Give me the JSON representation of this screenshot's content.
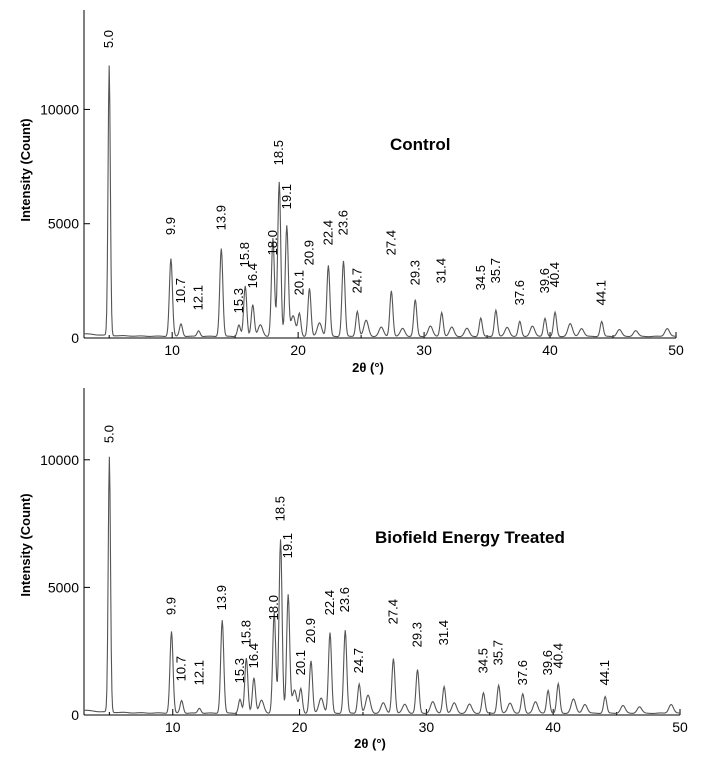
{
  "chart_data": [
    {
      "type": "line",
      "title": "Control",
      "xlabel": "2θ (°)",
      "ylabel": "Intensity (Count)",
      "xlim": [
        3,
        50
      ],
      "ylim": [
        0,
        14000
      ],
      "xticks": [
        "10",
        "20",
        "30",
        "40",
        "50"
      ],
      "yticks": [
        "0",
        "5000",
        "10000"
      ],
      "grid": false,
      "color": "#555555",
      "peaks": [
        {
          "label": "5.0",
          "x": 5.0,
          "y": 11800
        },
        {
          "label": "9.9",
          "x": 9.9,
          "y": 3400
        },
        {
          "label": "10.7",
          "x": 10.7,
          "y": 550
        },
        {
          "label": "12.1",
          "x": 12.1,
          "y": 250
        },
        {
          "label": "13.9",
          "x": 13.9,
          "y": 3850
        },
        {
          "label": "15.3",
          "x": 15.3,
          "y": 500
        },
        {
          "label": "15.8",
          "x": 15.8,
          "y": 2200
        },
        {
          "label": "16.4",
          "x": 16.4,
          "y": 1400
        },
        {
          "label": "18.0",
          "x": 18.0,
          "y": 4300
        },
        {
          "label": "18.5",
          "x": 18.5,
          "y": 6750
        },
        {
          "label": "19.1",
          "x": 19.1,
          "y": 4850
        },
        {
          "label": "20.1",
          "x": 20.1,
          "y": 1000
        },
        {
          "label": "20.9",
          "x": 20.9,
          "y": 2100
        },
        {
          "label": "22.4",
          "x": 22.4,
          "y": 3100
        },
        {
          "label": "23.6",
          "x": 23.6,
          "y": 3300
        },
        {
          "label": "24.7",
          "x": 24.7,
          "y": 1100
        },
        {
          "label": "27.4",
          "x": 27.4,
          "y": 2000
        },
        {
          "label": "29.3",
          "x": 29.3,
          "y": 1600
        },
        {
          "label": "31.4",
          "x": 31.4,
          "y": 1050
        },
        {
          "label": "34.5",
          "x": 34.5,
          "y": 800
        },
        {
          "label": "35.7",
          "x": 35.7,
          "y": 1150
        },
        {
          "label": "37.6",
          "x": 37.6,
          "y": 650
        },
        {
          "label": "39.6",
          "x": 39.6,
          "y": 800
        },
        {
          "label": "40.4",
          "x": 40.4,
          "y": 1050
        },
        {
          "label": "44.1",
          "x": 44.1,
          "y": 650
        }
      ]
    },
    {
      "type": "line",
      "title": "Biofield Energy Treated",
      "xlabel": "2θ (°)",
      "ylabel": "Intensity (Count)",
      "xlim": [
        3,
        50
      ],
      "ylim": [
        0,
        12500
      ],
      "xticks": [
        "10",
        "20",
        "30",
        "40",
        "50"
      ],
      "yticks": [
        "0",
        "5000",
        "10000"
      ],
      "grid": false,
      "color": "#555555",
      "peaks": [
        {
          "label": "5.0",
          "x": 5.0,
          "y": 10000
        },
        {
          "label": "9.9",
          "x": 9.9,
          "y": 3200
        },
        {
          "label": "10.7",
          "x": 10.7,
          "y": 500
        },
        {
          "label": "12.1",
          "x": 12.1,
          "y": 200
        },
        {
          "label": "13.9",
          "x": 13.9,
          "y": 3650
        },
        {
          "label": "15.3",
          "x": 15.3,
          "y": 550
        },
        {
          "label": "15.8",
          "x": 15.8,
          "y": 2150
        },
        {
          "label": "16.4",
          "x": 16.4,
          "y": 1400
        },
        {
          "label": "18.0",
          "x": 18.0,
          "y": 3950
        },
        {
          "label": "18.5",
          "x": 18.5,
          "y": 6800
        },
        {
          "label": "19.1",
          "x": 19.1,
          "y": 4650
        },
        {
          "label": "20.1",
          "x": 20.1,
          "y": 950
        },
        {
          "label": "20.9",
          "x": 20.9,
          "y": 2050
        },
        {
          "label": "22.4",
          "x": 22.4,
          "y": 3150
        },
        {
          "label": "23.6",
          "x": 23.6,
          "y": 3250
        },
        {
          "label": "24.7",
          "x": 24.7,
          "y": 1150
        },
        {
          "label": "27.4",
          "x": 27.4,
          "y": 2150
        },
        {
          "label": "29.3",
          "x": 29.3,
          "y": 1700
        },
        {
          "label": "31.4",
          "x": 31.4,
          "y": 1050
        },
        {
          "label": "34.5",
          "x": 34.5,
          "y": 800
        },
        {
          "label": "35.7",
          "x": 35.7,
          "y": 1100
        },
        {
          "label": "37.6",
          "x": 37.6,
          "y": 750
        },
        {
          "label": "39.6",
          "x": 39.6,
          "y": 900
        },
        {
          "label": "40.4",
          "x": 40.4,
          "y": 1150
        },
        {
          "label": "44.1",
          "x": 44.1,
          "y": 650
        }
      ]
    }
  ]
}
